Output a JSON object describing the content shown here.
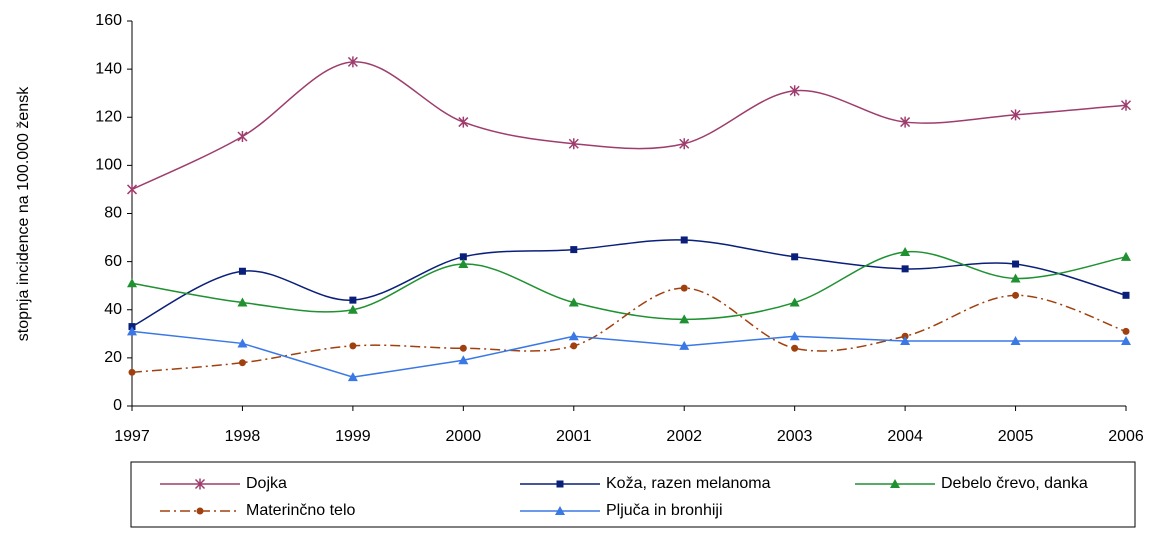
{
  "chart_data": {
    "type": "line",
    "y_label": "stopnja incidence na 100.000 žensk",
    "x": [
      1997,
      1998,
      1999,
      2000,
      2001,
      2002,
      2003,
      2004,
      2005,
      2006
    ],
    "xlim": [
      1997,
      2006
    ],
    "xticks": [
      1997,
      1998,
      1999,
      2000,
      2001,
      2002,
      2003,
      2004,
      2005,
      2006
    ],
    "ylim": [
      0,
      160
    ],
    "yticks": [
      0,
      20,
      40,
      60,
      80,
      100,
      120,
      140,
      160
    ],
    "grid": false,
    "legend": "bottom",
    "series": [
      {
        "name": "Dojka",
        "color": "#9e3d6d",
        "marker": "star",
        "smooth": true,
        "dash": "solid",
        "values": [
          90,
          112,
          143,
          118,
          109,
          109,
          131,
          118,
          121,
          125
        ]
      },
      {
        "name": "Koža, razen melanoma",
        "color": "#0a1f7a",
        "marker": "square",
        "smooth": true,
        "dash": "solid",
        "values": [
          33,
          56,
          44,
          62,
          65,
          69,
          62,
          57,
          59,
          46
        ]
      },
      {
        "name": "Debelo črevo, danka",
        "color": "#1f9130",
        "marker": "triangle",
        "smooth": true,
        "dash": "solid",
        "values": [
          51,
          43,
          40,
          59,
          43,
          36,
          43,
          64,
          53,
          62
        ]
      },
      {
        "name": "Materinčno telo",
        "color": "#a0400e",
        "marker": "circle",
        "smooth": true,
        "dash": "dashdot",
        "values": [
          14,
          18,
          25,
          24,
          25,
          49,
          24,
          29,
          46,
          31
        ]
      },
      {
        "name": "Pljuča in bronhiji",
        "color": "#3a78e6",
        "marker": "triangle",
        "smooth": false,
        "dash": "solid",
        "values": [
          31,
          26,
          12,
          19,
          29,
          25,
          29,
          27,
          27,
          27
        ]
      }
    ]
  }
}
